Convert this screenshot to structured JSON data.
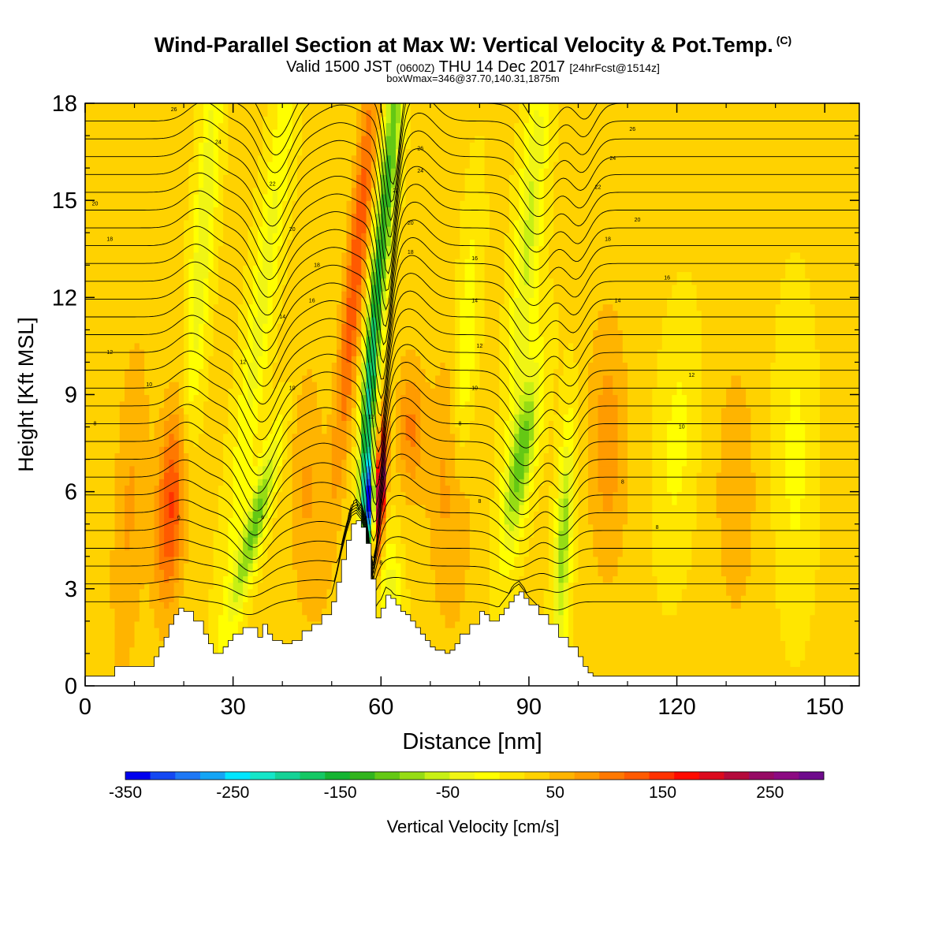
{
  "header": {
    "title": "Wind-Parallel Section at Max W: Vertical Velocity & Pot.Temp.",
    "title_mark": "(C)",
    "valid_prefix": "Valid 1500 JST",
    "valid_zulu": "(0600Z)",
    "valid_date": "THU 14 Dec 2017",
    "forecast": "[24hrFcst@1514z]",
    "box_note": "boxWmax=346@37.70,140.31,1875m"
  },
  "colorbar": {
    "title": "Vertical Velocity [cm/s]",
    "tick_labels": [
      "-350",
      "-250",
      "-150",
      "-50",
      "50",
      "150",
      "250"
    ],
    "tick_values": [
      -350,
      -250,
      -150,
      -50,
      50,
      150,
      250
    ],
    "range": [
      -350,
      300
    ],
    "colors": [
      "#0000ee",
      "#1448f2",
      "#1e78f5",
      "#14a5f5",
      "#00e6ff",
      "#14e6c8",
      "#14d296",
      "#14c864",
      "#14b432",
      "#32b41e",
      "#64c814",
      "#96dc14",
      "#c8f014",
      "#f0f514",
      "#ffff00",
      "#ffe600",
      "#ffd200",
      "#ffb400",
      "#ff9b00",
      "#ff7800",
      "#ff5a00",
      "#ff3200",
      "#ff0a00",
      "#dc0a1e",
      "#b40a3c",
      "#960a64",
      "#8c0a82",
      "#6e0a8c"
    ]
  },
  "chart_data": {
    "type": "heatmap",
    "xlabel": "Distance [nm]",
    "ylabel": "Height [Kft MSL]",
    "xlim": [
      0,
      157
    ],
    "ylim": [
      0,
      18
    ],
    "x_ticks": [
      0,
      30,
      60,
      90,
      120,
      150
    ],
    "x_tick_labels": [
      "0",
      "30",
      "60",
      "90",
      "120",
      "150"
    ],
    "y_ticks": [
      0,
      3,
      6,
      9,
      12,
      15,
      18
    ],
    "y_tick_labels": [
      "0",
      "3",
      "6",
      "9",
      "12",
      "15",
      "18"
    ],
    "background_velocity_cm_s": 25,
    "velocity_features": [
      {
        "x": 9,
        "z": 5.5,
        "sx": 2.5,
        "sz": 4,
        "w": 45,
        "tilt": 0.3
      },
      {
        "x": 17.5,
        "z": 5.5,
        "sx": 2.2,
        "sz": 2.2,
        "w": 120,
        "tilt": 0.3
      },
      {
        "x": 34.5,
        "z": 5,
        "sx": 1.5,
        "sz": 2,
        "w": -130,
        "tilt": 1.6
      },
      {
        "x": 36,
        "z": 12,
        "sx": 1.8,
        "sz": 6,
        "w": -60,
        "tilt": 0.8
      },
      {
        "x": 24,
        "z": 14,
        "sx": 1.5,
        "sz": 5,
        "w": -70,
        "tilt": 0.5
      },
      {
        "x": 57.5,
        "z": 5.7,
        "sx": 0.7,
        "sz": 0.9,
        "w": -330,
        "tilt": 0
      },
      {
        "x": 57.5,
        "z": 8.5,
        "sx": 1,
        "sz": 2.5,
        "w": -170,
        "tilt": 0.4
      },
      {
        "x": 61,
        "z": 15,
        "sx": 1.3,
        "sz": 4,
        "w": -160,
        "tilt": 0.6
      },
      {
        "x": 60,
        "z": 6.2,
        "sx": 0.7,
        "sz": 1.4,
        "w": 250,
        "tilt": 0.3
      },
      {
        "x": 55,
        "z": 13,
        "sx": 1.5,
        "sz": 5,
        "w": 110,
        "tilt": 0.6
      },
      {
        "x": 66,
        "z": 8,
        "sx": 2,
        "sz": 1.5,
        "w": 70,
        "tilt": 0
      },
      {
        "x": 88.5,
        "z": 7,
        "sx": 1.8,
        "sz": 2,
        "w": -130,
        "tilt": 1
      },
      {
        "x": 97,
        "z": 4.5,
        "sx": 1.2,
        "sz": 2.5,
        "w": -110,
        "tilt": 0.3
      },
      {
        "x": 90,
        "z": 14,
        "sx": 1.8,
        "sz": 4,
        "w": -80,
        "tilt": 0.5
      },
      {
        "x": 62,
        "z": 2.5,
        "sx": 1.5,
        "sz": 1.5,
        "w": -70,
        "tilt": 0
      },
      {
        "x": 74,
        "z": 6,
        "sx": 3,
        "sz": 3,
        "w": 55,
        "tilt": 0
      },
      {
        "x": 106,
        "z": 7.5,
        "sx": 3,
        "sz": 3,
        "w": 55,
        "tilt": 0
      },
      {
        "x": 120,
        "z": 7.5,
        "sx": 2.5,
        "sz": 2.5,
        "w": -35,
        "tilt": 0.3
      },
      {
        "x": 132,
        "z": 6,
        "sx": 3,
        "sz": 3,
        "w": 40,
        "tilt": 0
      },
      {
        "x": 45,
        "z": 6,
        "sx": 2.5,
        "sz": 3,
        "w": 45,
        "tilt": 0
      },
      {
        "x": 144,
        "z": 7,
        "sx": 2.5,
        "sz": 3,
        "w": -35,
        "tilt": 0
      },
      {
        "x": 77,
        "z": 10,
        "sx": 1.5,
        "sz": 3,
        "w": -60,
        "tilt": 0.4
      }
    ],
    "terrain": {
      "x": [
        0,
        5,
        6,
        13,
        14,
        15,
        16,
        17,
        18,
        19,
        20,
        22,
        24,
        25,
        26,
        27,
        28,
        29,
        30,
        32,
        34,
        35,
        36,
        37,
        38,
        40,
        42,
        44,
        46,
        48,
        50,
        51,
        52,
        53,
        54,
        55,
        56,
        57,
        58,
        59,
        60,
        61,
        62,
        63,
        64,
        65,
        66,
        67,
        68,
        69,
        70,
        71,
        72,
        73,
        74,
        75,
        76,
        78,
        80,
        81,
        82,
        84,
        85,
        86,
        87,
        88,
        89,
        90,
        92,
        94,
        96,
        98,
        100,
        101,
        102,
        103,
        104,
        157
      ],
      "z": [
        0.3,
        0.3,
        0.6,
        0.6,
        0.9,
        1.2,
        1.5,
        1.9,
        2.2,
        2.4,
        2.3,
        2,
        1.6,
        1.3,
        1,
        1,
        1.2,
        1.4,
        1.6,
        1.8,
        1.8,
        1.5,
        1.9,
        1.6,
        1.4,
        1.3,
        1.4,
        1.7,
        1.9,
        2.2,
        2.6,
        3.2,
        3.9,
        4.5,
        5,
        5.1,
        4.9,
        4.4,
        3.3,
        2.1,
        2.4,
        2.8,
        2.7,
        2.5,
        2.3,
        2.2,
        2,
        1.8,
        1.6,
        1.4,
        1.2,
        1.1,
        1.1,
        1,
        1.1,
        1.3,
        1.6,
        1.9,
        2.3,
        2.2,
        2,
        2.2,
        2.4,
        2.6,
        2.8,
        2.9,
        2.7,
        2.5,
        2.2,
        1.9,
        1.5,
        1.2,
        0.9,
        0.6,
        0.4,
        0.3,
        0.3,
        0.3
      ]
    },
    "contour_field": "potential_temperature",
    "contour_labels": [
      {
        "x": 19,
        "z": 5.2,
        "text": "6"
      },
      {
        "x": 36,
        "z": 5.2,
        "text": "6"
      },
      {
        "x": 60,
        "z": 3.8,
        "text": "8"
      },
      {
        "x": 60,
        "z": 5.7,
        "text": "8"
      },
      {
        "x": 60,
        "z": 6.4,
        "text": "10"
      },
      {
        "x": 58,
        "z": 8.3,
        "text": "12"
      },
      {
        "x": 80,
        "z": 5.7,
        "text": "8"
      },
      {
        "x": 76,
        "z": 8.1,
        "text": "8"
      },
      {
        "x": 79,
        "z": 9.2,
        "text": "10"
      },
      {
        "x": 109,
        "z": 6.3,
        "text": "8"
      },
      {
        "x": 116,
        "z": 4.9,
        "text": "8"
      },
      {
        "x": 121,
        "z": 8,
        "text": "10"
      },
      {
        "x": 123,
        "z": 9.6,
        "text": "12"
      },
      {
        "x": 2,
        "z": 8.1,
        "text": "8"
      },
      {
        "x": 13,
        "z": 9.3,
        "text": "10"
      },
      {
        "x": 5,
        "z": 10.3,
        "text": "12"
      },
      {
        "x": 32,
        "z": 10,
        "text": "12"
      },
      {
        "x": 42,
        "z": 9.2,
        "text": "10"
      },
      {
        "x": 40,
        "z": 11.4,
        "text": "14"
      },
      {
        "x": 46,
        "z": 11.9,
        "text": "16"
      },
      {
        "x": 47,
        "z": 13,
        "text": "18"
      },
      {
        "x": 80,
        "z": 10.5,
        "text": "12"
      },
      {
        "x": 79,
        "z": 11.9,
        "text": "14"
      },
      {
        "x": 79,
        "z": 13.2,
        "text": "16"
      },
      {
        "x": 108,
        "z": 11.9,
        "text": "14"
      },
      {
        "x": 118,
        "z": 12.6,
        "text": "16"
      },
      {
        "x": 106,
        "z": 13.8,
        "text": "18"
      },
      {
        "x": 112,
        "z": 14.4,
        "text": "20"
      },
      {
        "x": 104,
        "z": 15.4,
        "text": "22"
      },
      {
        "x": 107,
        "z": 16.3,
        "text": "24"
      },
      {
        "x": 111,
        "z": 17.2,
        "text": "26"
      },
      {
        "x": 5,
        "z": 13.8,
        "text": "18"
      },
      {
        "x": 2,
        "z": 14.9,
        "text": "20"
      },
      {
        "x": 27,
        "z": 16.8,
        "text": "24"
      },
      {
        "x": 18,
        "z": 17.8,
        "text": "26"
      },
      {
        "x": 38,
        "z": 15.5,
        "text": "22"
      },
      {
        "x": 42,
        "z": 14.1,
        "text": "20"
      },
      {
        "x": 63,
        "z": 15.3,
        "text": "22"
      },
      {
        "x": 66,
        "z": 14.3,
        "text": "20"
      },
      {
        "x": 66,
        "z": 13.4,
        "text": "18"
      },
      {
        "x": 68,
        "z": 15.9,
        "text": "24"
      },
      {
        "x": 68,
        "z": 16.6,
        "text": "26"
      }
    ]
  }
}
